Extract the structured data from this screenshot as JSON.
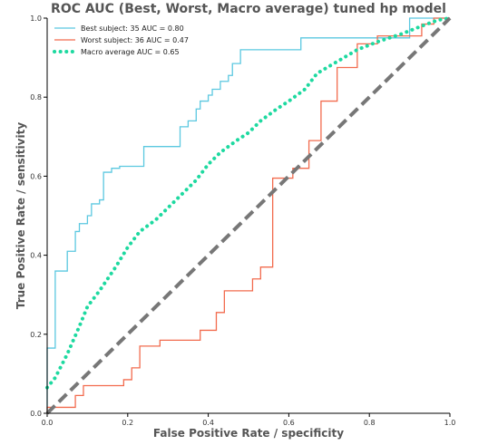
{
  "chart_data": {
    "type": "line",
    "title": "ROC AUC (Best, Worst, Macro average) tuned hp model",
    "xlabel": "False Positive Rate / specificity",
    "ylabel": "True Positive Rate / sensitivity",
    "xlim": [
      0.0,
      1.0
    ],
    "ylim": [
      0.0,
      1.0
    ],
    "xticks": [
      "0.0",
      "0.2",
      "0.4",
      "0.6",
      "0.8",
      "1.0"
    ],
    "yticks": [
      "0.0",
      "0.2",
      "0.4",
      "0.6",
      "0.8",
      "1.0"
    ],
    "grid": false,
    "legend_position": "top-left",
    "series": [
      {
        "name": "Best subject: 35 AUC = 0.80",
        "color": "#5bc8e0",
        "style": "step",
        "x": [
          0.0,
          0.0,
          0.02,
          0.02,
          0.05,
          0.05,
          0.07,
          0.07,
          0.08,
          0.08,
          0.1,
          0.1,
          0.11,
          0.11,
          0.13,
          0.13,
          0.14,
          0.14,
          0.16,
          0.16,
          0.18,
          0.18,
          0.24,
          0.24,
          0.33,
          0.33,
          0.35,
          0.35,
          0.37,
          0.37,
          0.38,
          0.38,
          0.4,
          0.4,
          0.41,
          0.41,
          0.43,
          0.43,
          0.45,
          0.45,
          0.46,
          0.46,
          0.48,
          0.48,
          0.63,
          0.63,
          0.9,
          0.9,
          1.0
        ],
        "y": [
          0.0,
          0.165,
          0.165,
          0.36,
          0.36,
          0.41,
          0.41,
          0.46,
          0.46,
          0.48,
          0.48,
          0.5,
          0.5,
          0.53,
          0.53,
          0.54,
          0.54,
          0.61,
          0.61,
          0.62,
          0.62,
          0.625,
          0.625,
          0.675,
          0.675,
          0.725,
          0.725,
          0.74,
          0.74,
          0.77,
          0.77,
          0.79,
          0.79,
          0.805,
          0.805,
          0.82,
          0.82,
          0.84,
          0.84,
          0.855,
          0.855,
          0.885,
          0.885,
          0.92,
          0.92,
          0.95,
          0.95,
          1.0,
          1.0
        ]
      },
      {
        "name": "Worst subject: 36 AUC = 0.47",
        "color": "#f26b4e",
        "style": "step",
        "x": [
          0.0,
          0.0,
          0.07,
          0.07,
          0.09,
          0.09,
          0.19,
          0.19,
          0.21,
          0.21,
          0.23,
          0.23,
          0.28,
          0.28,
          0.38,
          0.38,
          0.42,
          0.42,
          0.44,
          0.44,
          0.51,
          0.51,
          0.53,
          0.53,
          0.56,
          0.56,
          0.61,
          0.61,
          0.65,
          0.65,
          0.68,
          0.68,
          0.72,
          0.72,
          0.77,
          0.77,
          0.82,
          0.82,
          0.93,
          0.93,
          0.96,
          0.96,
          1.0
        ],
        "y": [
          0.0,
          0.015,
          0.015,
          0.045,
          0.045,
          0.07,
          0.07,
          0.085,
          0.085,
          0.115,
          0.115,
          0.17,
          0.17,
          0.185,
          0.185,
          0.21,
          0.21,
          0.255,
          0.255,
          0.31,
          0.31,
          0.34,
          0.34,
          0.37,
          0.37,
          0.595,
          0.595,
          0.62,
          0.62,
          0.69,
          0.69,
          0.79,
          0.79,
          0.875,
          0.875,
          0.935,
          0.935,
          0.955,
          0.955,
          0.985,
          0.985,
          1.0,
          1.0
        ]
      },
      {
        "name": "Macro average AUC = 0.65",
        "color": "#1ed9a0",
        "style": "dotted",
        "x": [
          0.0,
          0.02,
          0.05,
          0.08,
          0.1,
          0.13,
          0.17,
          0.2,
          0.23,
          0.27,
          0.3,
          0.33,
          0.37,
          0.4,
          0.43,
          0.47,
          0.5,
          0.53,
          0.57,
          0.6,
          0.64,
          0.67,
          0.72,
          0.77,
          0.82,
          0.88,
          0.93,
          0.97,
          1.0
        ],
        "y": [
          0.065,
          0.09,
          0.15,
          0.22,
          0.27,
          0.31,
          0.37,
          0.42,
          0.46,
          0.49,
          0.52,
          0.55,
          0.59,
          0.63,
          0.66,
          0.69,
          0.71,
          0.74,
          0.77,
          0.79,
          0.82,
          0.86,
          0.89,
          0.92,
          0.94,
          0.96,
          0.98,
          0.995,
          1.0
        ]
      },
      {
        "name": "",
        "color": "#777777",
        "style": "dashed",
        "x": [
          0.0,
          1.0
        ],
        "y": [
          0.0,
          1.0
        ]
      }
    ]
  }
}
